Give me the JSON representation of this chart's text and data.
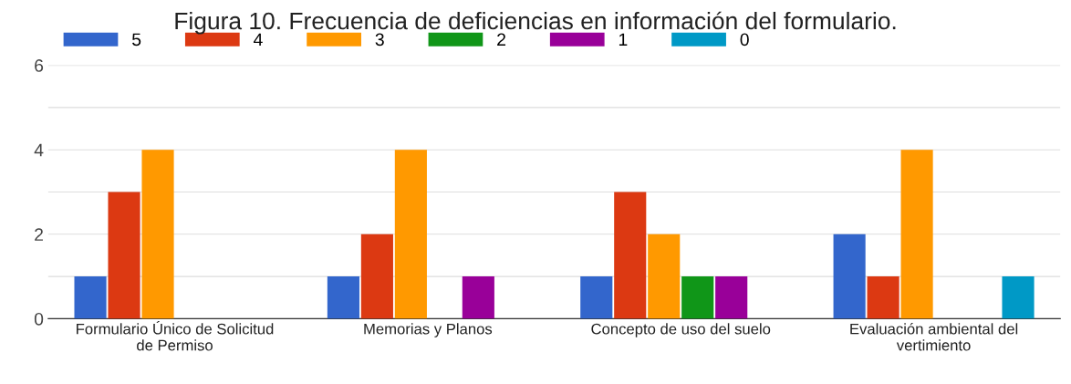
{
  "chart_data": {
    "type": "bar",
    "title": "Figura 10. Frecuencia de deficiencias en información del formulario.",
    "categories": [
      "Formulario Único de Solicitud de Permiso",
      "Memorias y Planos",
      "Concepto de uso del suelo",
      "Evaluación ambiental del vertimiento"
    ],
    "series": [
      {
        "name": "5",
        "color": "#3366cc",
        "values": [
          1,
          1,
          1,
          2
        ]
      },
      {
        "name": "4",
        "color": "#dc3912",
        "values": [
          3,
          2,
          3,
          1
        ]
      },
      {
        "name": "3",
        "color": "#ff9900",
        "values": [
          4,
          4,
          2,
          4
        ]
      },
      {
        "name": "2",
        "color": "#109618",
        "values": [
          0,
          0,
          1,
          0
        ]
      },
      {
        "name": "1",
        "color": "#990099",
        "values": [
          0,
          1,
          1,
          0
        ]
      },
      {
        "name": "0",
        "color": "#0099c6",
        "values": [
          0,
          0,
          0,
          1
        ]
      }
    ],
    "ylim": [
      0,
      6
    ],
    "yticks": [
      0,
      {
        "value": 1,
        "label": null
      },
      2,
      {
        "value": 3,
        "label": null
      },
      4,
      {
        "value": 5,
        "label": null
      },
      6
    ],
    "grid": "y",
    "legend": "top left"
  }
}
